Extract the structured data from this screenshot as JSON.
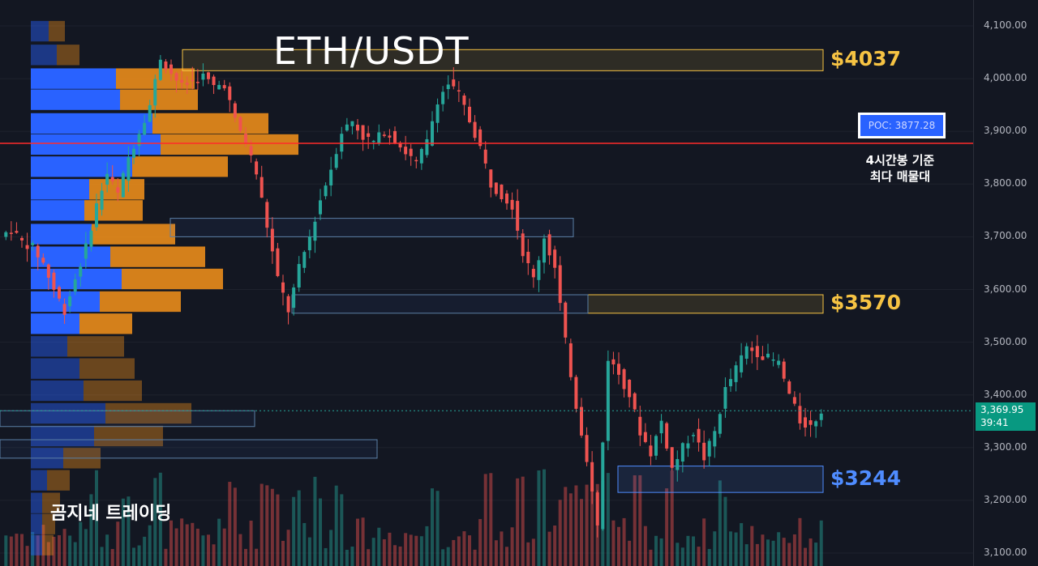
{
  "header": {
    "title": "ETH/USDT",
    "brand": "곰지네 트레이딩"
  },
  "poc": {
    "label": "POC: 3877.28",
    "note_line1": "4시간봉 기준",
    "note_line2": "최다 매물대"
  },
  "zones": [
    {
      "price_label": "$4037",
      "top": 4055,
      "bottom": 4015,
      "color": "#f6c343",
      "x_start": 225
    },
    {
      "price_label": "$3570",
      "top": 3590,
      "bottom": 3555,
      "color": "#f6c343",
      "x_start": 725
    },
    {
      "price_label": "$3244",
      "top": 3265,
      "bottom": 3215,
      "color": "#4f8cff",
      "x_start": 762
    }
  ],
  "current_price": {
    "price": "3,369.95",
    "timer": "39:41",
    "value": 3369.95
  },
  "colors": {
    "up": "#26a69a",
    "down": "#ef5350",
    "poc_line": "#ff2b2b",
    "vp_blue": "#2962ff",
    "vp_orange": "#f7931a",
    "background": "#131722"
  },
  "chart_data": {
    "type": "candlestick",
    "title": "ETH/USDT",
    "y_ticks": [
      "4,100.00",
      "4,000.00",
      "3,900.00",
      "3,800.00",
      "3,700.00",
      "3,600.00",
      "3,500.00",
      "3,400.00",
      "3,300.00",
      "3,200.00",
      "3,100.00"
    ],
    "ylim": [
      3075,
      4130
    ],
    "poc_price": 3877.28,
    "close_path": [
      3700,
      3715,
      3690,
      3680,
      3650,
      3600,
      3560,
      3620,
      3680,
      3760,
      3820,
      3780,
      3850,
      3900,
      3950,
      4040,
      4010,
      3985,
      3995,
      4005,
      3985,
      3990,
      3920,
      3880,
      3820,
      3720,
      3620,
      3560,
      3640,
      3700,
      3770,
      3830,
      3900,
      3920,
      3890,
      3880,
      3900,
      3885,
      3860,
      3840,
      3880,
      3960,
      3990,
      3970,
      3920,
      3870,
      3800,
      3780,
      3760,
      3670,
      3620,
      3700,
      3640,
      3500,
      3380,
      3280,
      3150,
      3470,
      3440,
      3400,
      3330,
      3290,
      3350,
      3260,
      3300,
      3330,
      3280,
      3330,
      3410,
      3450,
      3490,
      3480,
      3470,
      3460,
      3400,
      3350,
      3340,
      3370
    ],
    "volume_profile": [
      {
        "price": 4090,
        "blue": 22,
        "orange": 20
      },
      {
        "price": 4045,
        "blue": 32,
        "orange": 28
      },
      {
        "price": 4000,
        "blue": 105,
        "orange": 97
      },
      {
        "price": 3960,
        "blue": 110,
        "orange": 96
      },
      {
        "price": 3915,
        "blue": 150,
        "orange": 143
      },
      {
        "price": 3875,
        "blue": 160,
        "orange": 170
      },
      {
        "price": 3833,
        "blue": 125,
        "orange": 118
      },
      {
        "price": 3790,
        "blue": 72,
        "orange": 68
      },
      {
        "price": 3750,
        "blue": 66,
        "orange": 72
      },
      {
        "price": 3705,
        "blue": 75,
        "orange": 103
      },
      {
        "price": 3662,
        "blue": 98,
        "orange": 117
      },
      {
        "price": 3620,
        "blue": 112,
        "orange": 125
      },
      {
        "price": 3577,
        "blue": 85,
        "orange": 100
      },
      {
        "price": 3535,
        "blue": 60,
        "orange": 65
      },
      {
        "price": 3492,
        "blue": 45,
        "orange": 70
      },
      {
        "price": 3450,
        "blue": 60,
        "orange": 68
      },
      {
        "price": 3408,
        "blue": 65,
        "orange": 72
      },
      {
        "price": 3365,
        "blue": 92,
        "orange": 106
      },
      {
        "price": 3322,
        "blue": 78,
        "orange": 85
      },
      {
        "price": 3280,
        "blue": 40,
        "orange": 46
      },
      {
        "price": 3238,
        "blue": 20,
        "orange": 28
      },
      {
        "price": 3195,
        "blue": 14,
        "orange": 22
      },
      {
        "price": 3155,
        "blue": 14,
        "orange": 16
      },
      {
        "price": 3115,
        "blue": 14,
        "orange": 14
      }
    ]
  }
}
